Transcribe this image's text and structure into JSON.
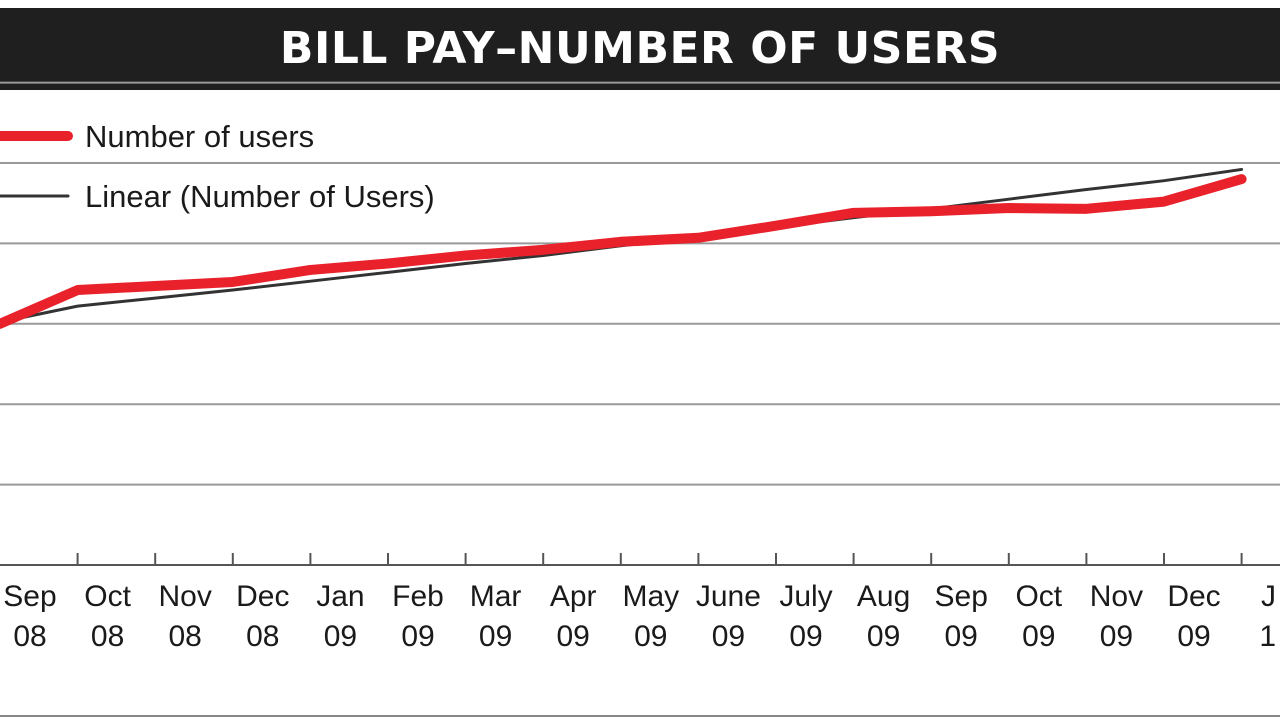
{
  "chart_data": {
    "type": "line",
    "title": "BILL PAY–NUMBER OF USERS",
    "categories": [
      [
        "Sep",
        "08"
      ],
      [
        "Oct",
        "08"
      ],
      [
        "Nov",
        "08"
      ],
      [
        "Dec",
        "08"
      ],
      [
        "Jan",
        "09"
      ],
      [
        "Feb",
        "09"
      ],
      [
        "Mar",
        "09"
      ],
      [
        "Apr",
        "09"
      ],
      [
        "May",
        "09"
      ],
      [
        "June",
        "09"
      ],
      [
        "July",
        "09"
      ],
      [
        "Aug",
        "09"
      ],
      [
        "Sep",
        "09"
      ],
      [
        "Oct",
        "09"
      ],
      [
        "Nov",
        "09"
      ],
      [
        "Dec",
        "09"
      ],
      [
        "J",
        "1"
      ]
    ],
    "series": [
      {
        "name": "Number of users",
        "color": "#e8212b",
        "values": [
          3.0,
          3.42,
          3.47,
          3.52,
          3.67,
          3.75,
          3.85,
          3.92,
          4.02,
          4.07,
          4.22,
          4.38,
          4.4,
          4.44,
          4.43,
          4.52,
          4.8
        ]
      },
      {
        "name": "Linear (Number of Users)",
        "color": "#333333",
        "values": [
          3.02,
          3.22,
          3.32,
          3.42,
          3.53,
          3.64,
          3.75,
          3.85,
          3.97,
          4.08,
          4.2,
          4.32,
          4.43,
          4.55,
          4.67,
          4.78,
          4.92
        ]
      }
    ],
    "ylim": [
      0,
      7
    ],
    "grid": true,
    "legend_placement": "top-left"
  }
}
